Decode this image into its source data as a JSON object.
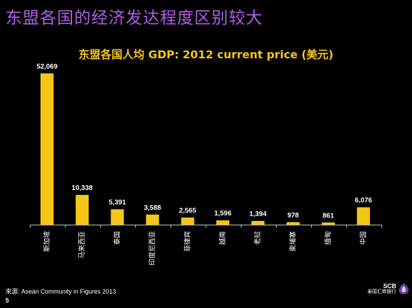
{
  "slide": {
    "title": "东盟各国的经济发达程度区别较大",
    "source": "来源: Asean Community in Figures 2013",
    "page_number": "5"
  },
  "logo": {
    "brand": "SCB",
    "subtitle": "泰国汇商银行"
  },
  "chart_data": {
    "type": "bar",
    "title": "东盟各国人均 GDP: 2012 current price (美元)",
    "categories": [
      "新加坡",
      "马来西亚",
      "泰国",
      "印度尼西亚",
      "菲律宾",
      "越南",
      "老挝",
      "柬埔寨",
      "缅甸",
      "中国"
    ],
    "values": [
      52069,
      10338,
      5391,
      3588,
      2565,
      1596,
      1394,
      978,
      861,
      6076
    ],
    "value_labels": [
      "52,069",
      "10,338",
      "5,391",
      "3,588",
      "2,565",
      "1,596",
      "1,394",
      "978",
      "861",
      "6,076"
    ],
    "ylim": [
      0,
      55000
    ],
    "bar_color": "#f5c518",
    "grid": false,
    "legend": "none"
  }
}
